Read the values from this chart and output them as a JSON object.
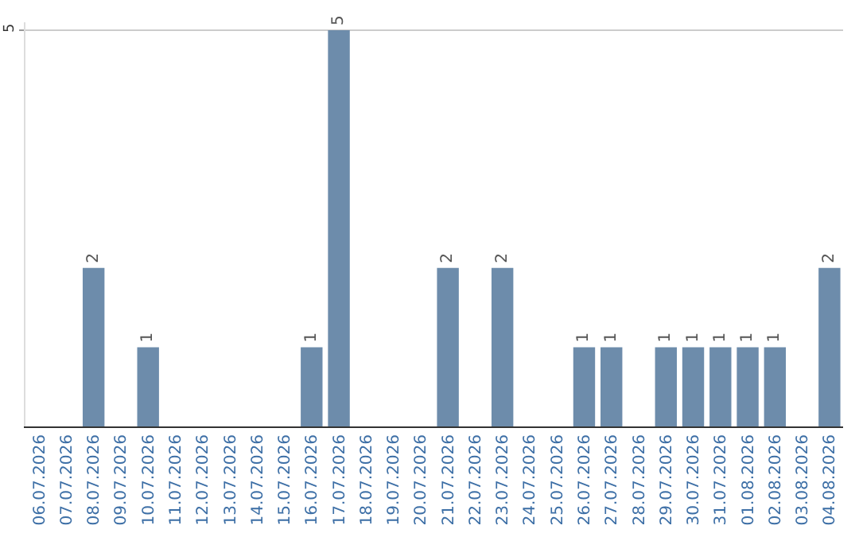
{
  "chart_data": {
    "type": "bar",
    "categories": [
      "06.07.2026",
      "07.07.2026",
      "08.07.2026",
      "09.07.2026",
      "10.07.2026",
      "11.07.2026",
      "12.07.2026",
      "13.07.2026",
      "14.07.2026",
      "15.07.2026",
      "16.07.2026",
      "17.07.2026",
      "18.07.2026",
      "19.07.2026",
      "20.07.2026",
      "21.07.2026",
      "22.07.2026",
      "23.07.2026",
      "24.07.2026",
      "25.07.2026",
      "26.07.2026",
      "27.07.2026",
      "28.07.2026",
      "29.07.2026",
      "30.07.2026",
      "31.07.2026",
      "01.08.2026",
      "02.08.2026",
      "03.08.2026",
      "04.08.2026"
    ],
    "values": [
      0,
      0,
      2,
      0,
      1,
      0,
      0,
      0,
      0,
      0,
      1,
      5,
      0,
      0,
      0,
      2,
      0,
      2,
      0,
      0,
      1,
      1,
      0,
      1,
      1,
      1,
      1,
      1,
      0,
      2
    ],
    "value_labels": [
      null,
      null,
      "2",
      null,
      "1",
      null,
      null,
      null,
      null,
      null,
      "1",
      "5",
      null,
      null,
      null,
      "2",
      null,
      "2",
      null,
      null,
      "1",
      "1",
      null,
      "1",
      "1",
      "1",
      "1",
      "1",
      null,
      "2"
    ],
    "color": "#6d8cab",
    "ylim": [
      0,
      5.1
    ],
    "yticks": [
      5
    ],
    "grid": "y"
  }
}
